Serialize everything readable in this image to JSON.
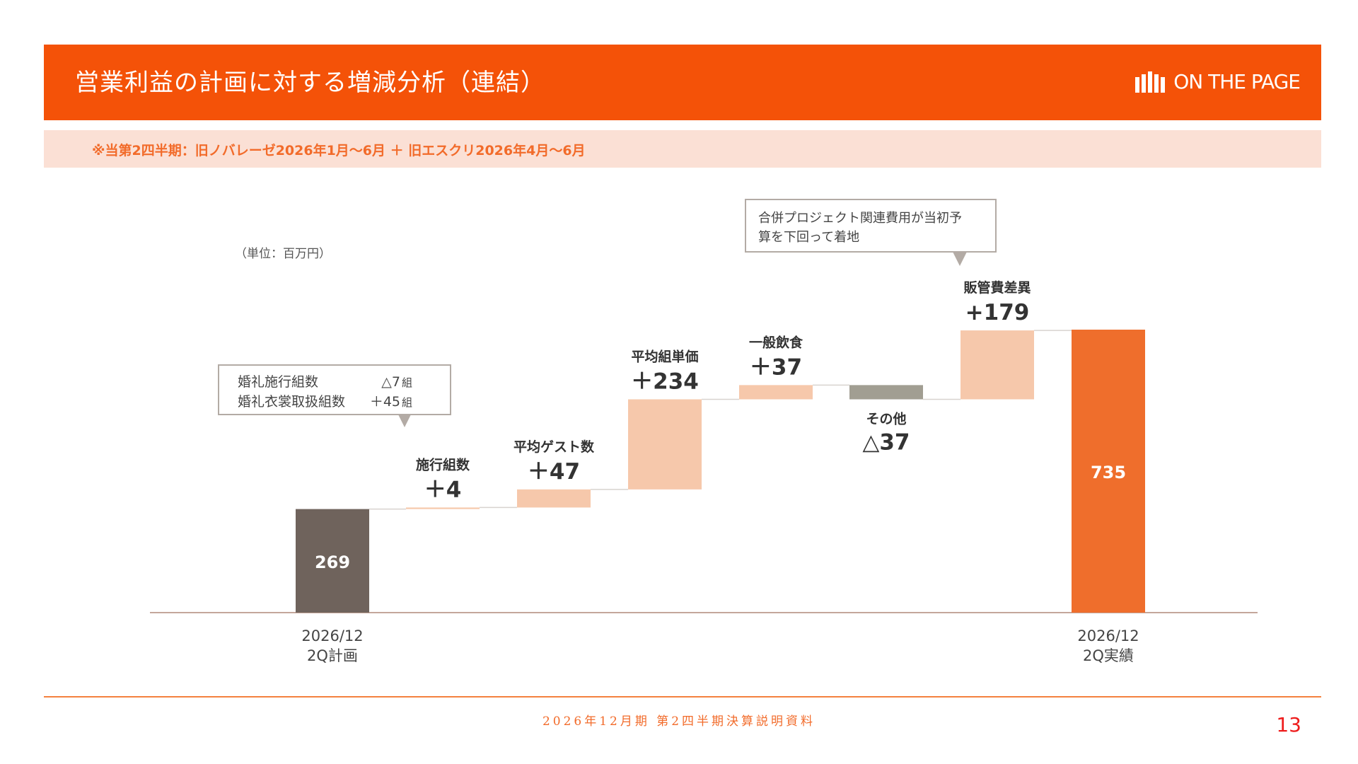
{
  "header": {
    "title": "営業利益の計画に対する増減分析（連結）",
    "brand": "ON THE PAGE",
    "background_color": "#f45208"
  },
  "note": {
    "text": "※当第2四半期：旧ノバレーゼ2026年1月～6月 ＋ 旧エスクリ2026年4月～6月"
  },
  "chart_data": {
    "type": "bar",
    "subtype": "waterfall",
    "unit_label": "（単位：百万円）",
    "ylim": [
      0,
      800
    ],
    "steps": [
      {
        "kind": "total",
        "category": "2026/12 2Q計画",
        "cat_line1": "2026/12",
        "cat_line2": "2Q計画",
        "value": 269,
        "value_label": "269",
        "color": "#6f635c"
      },
      {
        "kind": "delta",
        "category": "施行組数",
        "value": 4,
        "value_label": "＋4",
        "color": "#f6c8ab"
      },
      {
        "kind": "delta",
        "category": "平均ゲスト数",
        "value": 47,
        "value_label": "＋47",
        "color": "#f6c8ab"
      },
      {
        "kind": "delta",
        "category": "平均組単価",
        "value": 234,
        "value_label": "＋234",
        "color": "#f6c8ab"
      },
      {
        "kind": "delta",
        "category": "一般飲食",
        "value": 37,
        "value_label": "＋37",
        "color": "#f6c8ab"
      },
      {
        "kind": "delta",
        "category": "その他",
        "value": -37,
        "value_label": "△37",
        "color": "#a19e92"
      },
      {
        "kind": "delta",
        "category": "販管費差異",
        "value": 179,
        "value_label": "+179",
        "color": "#f6c8ab"
      },
      {
        "kind": "total",
        "category": "2026/12 2Q実績",
        "cat_line1": "2026/12",
        "cat_line2": "2Q実績",
        "value": 735,
        "value_label": "735",
        "color": "#ef6e2c"
      }
    ],
    "callouts": [
      {
        "target": "施行組数",
        "rows": [
          {
            "label": "婚礼施行組数",
            "value": "△7",
            "unit": "組"
          },
          {
            "label": "婚礼衣裳取扱組数",
            "value": "＋45",
            "unit": "組"
          }
        ]
      },
      {
        "target": "販管費差異",
        "lines": [
          "合併プロジェクト関連費用が当初予",
          "算を下回って着地"
        ]
      }
    ]
  },
  "footer": {
    "text": "2026年12月期 第2四半期決算説明資料",
    "page_number": "13"
  }
}
